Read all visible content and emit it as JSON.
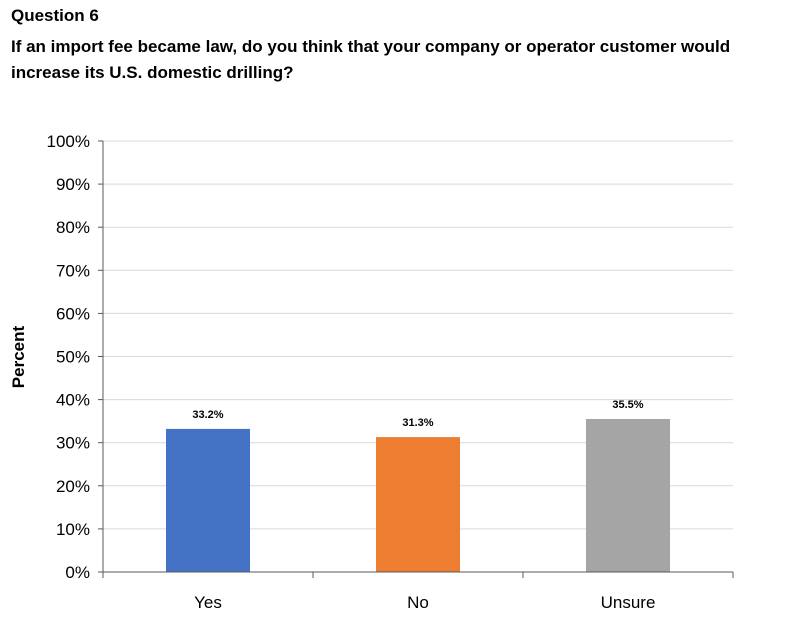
{
  "header": {
    "question_label": "Question 6",
    "question_text": "If an import fee became law, do you think that your company or operator customer would increase its U.S. domestic drilling?"
  },
  "chart_data": {
    "type": "bar",
    "categories": [
      "Yes",
      "No",
      "Unsure"
    ],
    "values": [
      33.2,
      31.3,
      35.5
    ],
    "data_labels": [
      "33.2%",
      "31.3%",
      "35.5%"
    ],
    "colors": [
      "#4472C4",
      "#ED7D31",
      "#A5A5A5"
    ],
    "ylabel": "Percent",
    "xlabel": "",
    "ylim": [
      0,
      100
    ],
    "yticks": [
      0,
      10,
      20,
      30,
      40,
      50,
      60,
      70,
      80,
      90,
      100
    ],
    "ytick_labels": [
      "0%",
      "10%",
      "20%",
      "30%",
      "40%",
      "50%",
      "60%",
      "70%",
      "80%",
      "90%",
      "100%"
    ],
    "grid": true,
    "legend": false
  }
}
